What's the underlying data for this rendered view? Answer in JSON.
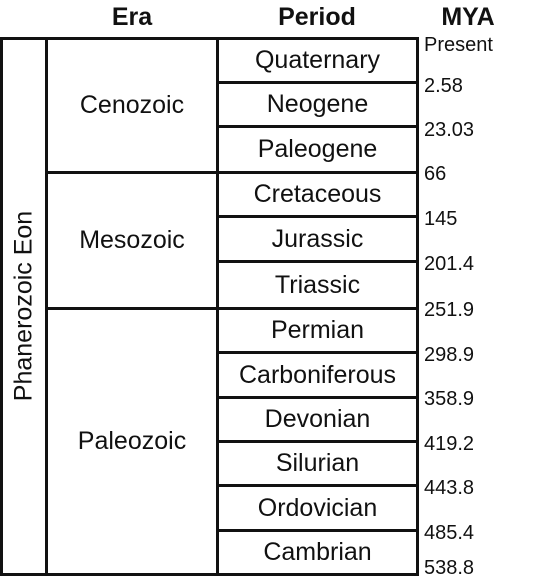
{
  "headers": {
    "era": "Era",
    "period": "Period",
    "mya": "MYA"
  },
  "eon": "Phanerozoic Eon",
  "eras": [
    "Cenozoic",
    "Mesozoic",
    "Paleozoic"
  ],
  "periods": [
    "Quaternary",
    "Neogene",
    "Paleogene",
    "Cretaceous",
    "Jurassic",
    "Triassic",
    "Permian",
    "Carboniferous",
    "Devonian",
    "Silurian",
    "Ordovician",
    "Cambrian"
  ],
  "boundaries": [
    "Present",
    "2.58",
    "23.03",
    "66",
    "145",
    "201.4",
    "251.9",
    "298.9",
    "358.9",
    "419.2",
    "443.8",
    "485.4",
    "538.8"
  ]
}
